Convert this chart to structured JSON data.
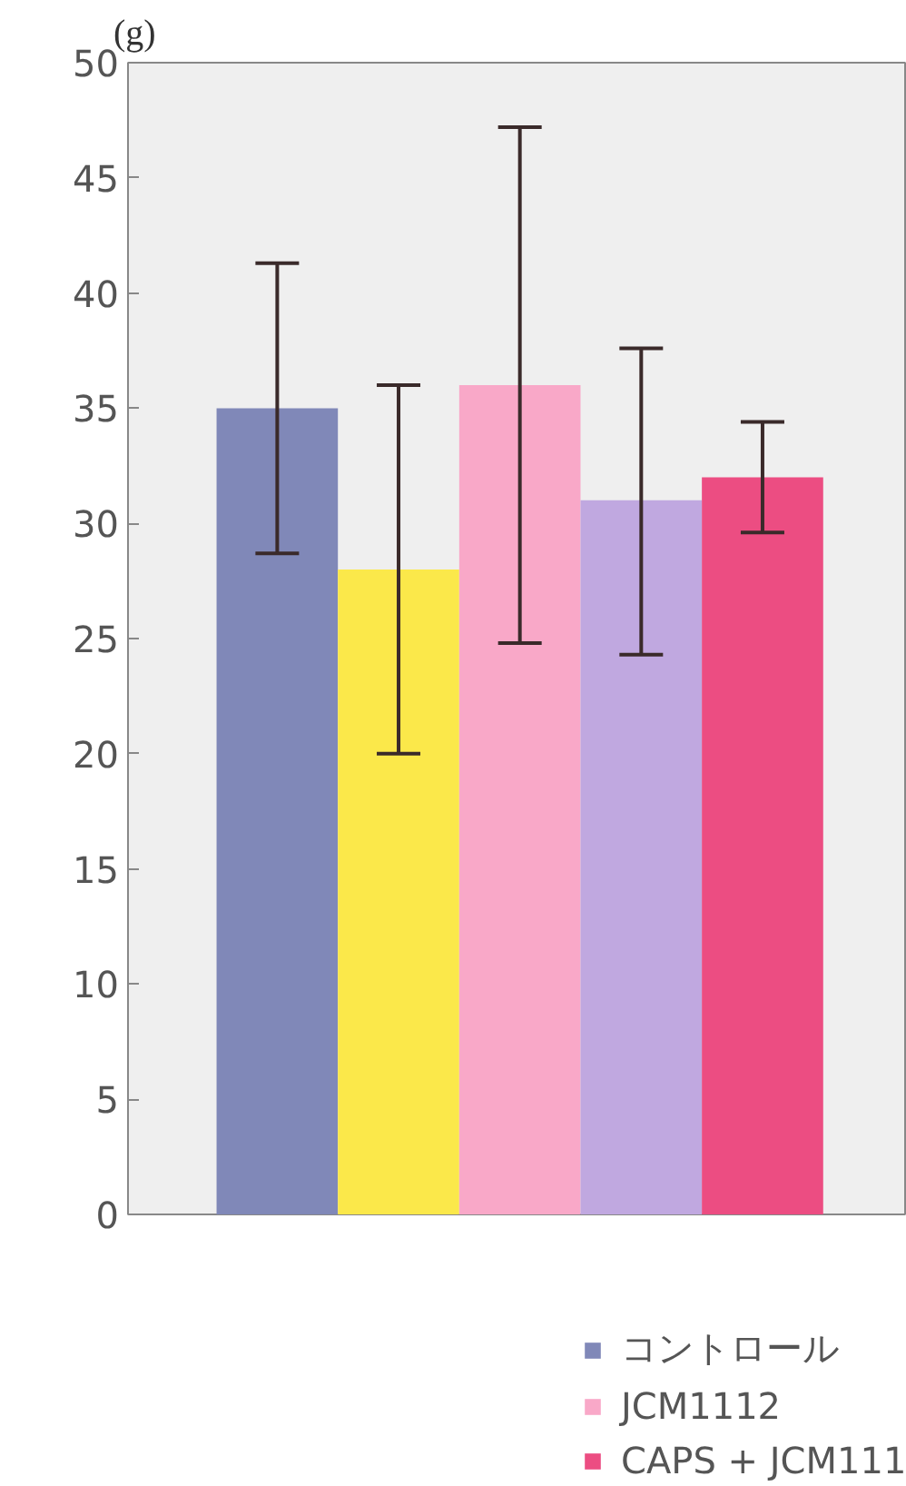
{
  "chart_data": {
    "type": "bar",
    "ylabel": "(g)",
    "categories": [
      null
    ],
    "series": [
      {
        "name": "コントロール",
        "color": "#8088b8",
        "values": [
          35
        ],
        "errors": [
          [
            28.7,
            41.3
          ]
        ]
      },
      {
        "color": "#fbe84a",
        "values": [
          28
        ],
        "errors": [
          [
            20,
            36
          ]
        ]
      },
      {
        "name": "JCM1112",
        "color": "#f9a8c8",
        "values": [
          36
        ],
        "errors": [
          [
            24.8,
            47.2
          ]
        ]
      },
      {
        "color": "#c0a8e0",
        "values": [
          31
        ],
        "errors": [
          [
            24.3,
            37.6
          ]
        ]
      },
      {
        "name": "CAPS + JCM111",
        "color": "#ec4d82",
        "values": [
          32
        ],
        "errors": [
          [
            29.6,
            34.4
          ]
        ]
      }
    ],
    "ylim": [
      0,
      50
    ],
    "yticks": [
      0,
      5,
      10,
      15,
      20,
      25,
      30,
      35,
      40,
      45,
      50
    ],
    "grid": false,
    "legend": "bottom"
  }
}
